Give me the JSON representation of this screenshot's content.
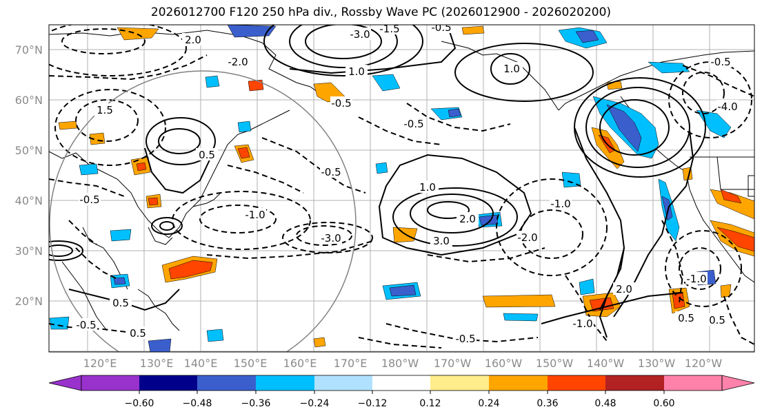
{
  "title": "2026012700 F120 250 hPa div., Rossby Wave PC (2026012900 - 2026020200)",
  "map": {
    "lat_labels": [
      "70°N",
      "60°N",
      "50°N",
      "40°N",
      "30°N",
      "20°N"
    ],
    "lon_labels": [
      "120°E",
      "130°E",
      "140°E",
      "150°E",
      "160°E",
      "170°E",
      "180°W",
      "170°W",
      "160°W",
      "150°W",
      "140°W",
      "130°W",
      "120°W"
    ],
    "contour_labels": [
      "-3.0",
      "-1.5",
      "-0.5",
      "1.0",
      "2.0",
      "-2.0",
      "1.5",
      "-0.5",
      "0.5",
      "-1.0",
      "-3.0",
      "1.0",
      "2.0",
      "3.0",
      "-1.0",
      "-2.0",
      "-0.5",
      "-0.5",
      "-4.0",
      "2.0",
      "0.5",
      "-0.5",
      "-1.0",
      "-0.5",
      "0.5",
      "-0.5",
      "0.5",
      "-1.0",
      "1.0",
      "0.5",
      "-0.5"
    ]
  },
  "colorbar": {
    "ticks": [
      "−0.60",
      "−0.48",
      "−0.36",
      "−0.24",
      "−0.12",
      "0.12",
      "0.24",
      "0.36",
      "0.48",
      "0.60"
    ],
    "colors": [
      "#9932cc",
      "#00008b",
      "#3a5fcd",
      "#00bfff",
      "#b0e2ff",
      "#ffffff",
      "#ffec8b",
      "#ffa500",
      "#ff4500",
      "#b22222",
      "#ff82ab"
    ]
  }
}
